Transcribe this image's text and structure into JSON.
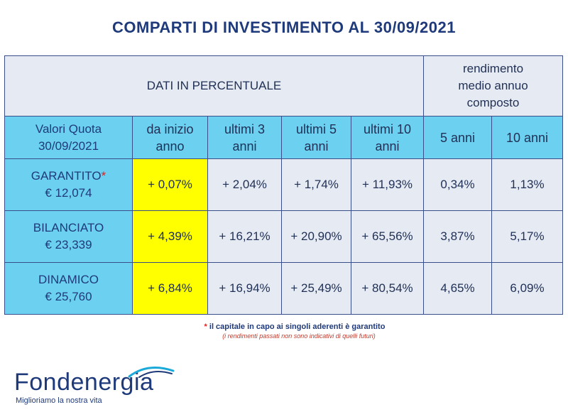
{
  "title": "COMPARTI DI INVESTIMENTO AL 30/09/2021",
  "header": {
    "dati": "DATI IN PERCENTUALE",
    "rendimento": [
      "rendimento",
      "medio annuo",
      "composto"
    ],
    "valori": [
      "Valori Quota",
      "30/09/2021"
    ],
    "columns": [
      [
        "da inizio",
        "anno"
      ],
      [
        "ultimi 3",
        "anni"
      ],
      [
        "ultimi 5",
        "anni"
      ],
      [
        "ultimi 10",
        "anni"
      ],
      [
        "5 anni"
      ],
      [
        "10 anni"
      ]
    ]
  },
  "rows": [
    {
      "name": "GARANTITO",
      "star": "*",
      "quota": "€ 12,074",
      "values": [
        "+ 0,07%",
        "+ 2,04%",
        "+ 1,74%",
        "+ 11,93%",
        "0,34%",
        "1,13%"
      ]
    },
    {
      "name": "BILANCIATO",
      "star": "",
      "quota": "€ 23,339",
      "values": [
        "+ 4,39%",
        "+ 16,21%",
        "+ 20,90%",
        "+ 65,56%",
        "3,87%",
        "5,17%"
      ]
    },
    {
      "name": "DINAMICO",
      "star": "",
      "quota": "€ 25,760",
      "values": [
        "+ 6,84%",
        "+ 16,94%",
        "+ 25,49%",
        "+ 80,54%",
        "4,65%",
        "6,09%"
      ]
    }
  ],
  "footnote": {
    "star": "*",
    "text": " il capitale in capo ai singoli aderenti è garantito",
    "sub": "(i rendimenti passati non sono indicativi di quelli futuri)"
  },
  "logo": {
    "name": "Fondenergia",
    "tagline": "Miglioriamo la nostra vita"
  },
  "colors": {
    "title": "#1f3a7a",
    "header_bg": "#e6ebf3",
    "highlight_cyan": "#6cd1f0",
    "highlight_yellow": "#ffff00",
    "star": "#e02020"
  }
}
